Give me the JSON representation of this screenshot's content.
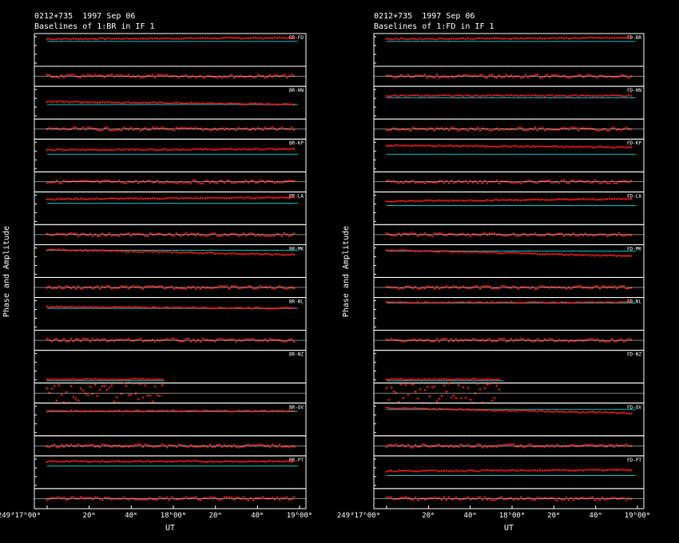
{
  "colors": {
    "background": "#000000",
    "frame": "#ffffff",
    "data": "#ff2020",
    "model": "#00c8c8",
    "text": "#ffffff"
  },
  "panels": [
    {
      "source_line": "0212+735  1997 Sep 06",
      "title_line": "Baselines of 1:BR in IF 1",
      "ylabel": "Phase and Amplitude",
      "xlabel": "UT",
      "x_tick_labels": [
        "249ᵈ17ʰ00ᵐ",
        "20ᵐ",
        "40ᵐ",
        "18ʰ00ᵐ",
        "20ᵐ",
        "40ᵐ",
        "19ʰ00ᵐ"
      ],
      "baselines": [
        {
          "label": "BR-FD",
          "amp_level": 0.88,
          "model_level": 0.8,
          "amp_trend": 0.04,
          "phase_amp": 0.04
        },
        {
          "label": "BR-HN",
          "amp_level": 0.55,
          "model_level": 0.45,
          "amp_trend": -0.1,
          "phase_amp": 0.04
        },
        {
          "label": "BR-KP",
          "amp_level": 0.7,
          "model_level": 0.55,
          "amp_trend": 0.03,
          "phase_amp": 0.04
        },
        {
          "label": "BR-LA",
          "amp_level": 0.82,
          "model_level": 0.68,
          "amp_trend": 0.06,
          "phase_amp": 0.04
        },
        {
          "label": "BR-MK",
          "amp_level": 0.9,
          "model_level": 0.88,
          "amp_trend": -0.18,
          "phase_amp": 0.04
        },
        {
          "label": "BR-NL",
          "amp_level": 0.75,
          "model_level": 0.7,
          "amp_trend": -0.05,
          "phase_amp": 0.04
        },
        {
          "label": "BR-NZ",
          "amp_level": 0.08,
          "model_level": 0.03,
          "amp_trend": 0.0,
          "phase_amp": 0.25,
          "end_fraction": 0.48
        },
        {
          "label": "BR-OV",
          "amp_level": 0.8,
          "model_level": 0.78,
          "amp_trend": 0.0,
          "phase_amp": 0.04
        },
        {
          "label": "BR-PT",
          "amp_level": 0.88,
          "model_level": 0.72,
          "amp_trend": 0.0,
          "phase_amp": 0.04
        }
      ]
    },
    {
      "source_line": "0212+735  1997 Sep 06",
      "title_line": "Baselines of 1:FD in IF 1",
      "ylabel": "Phase and Amplitude",
      "xlabel": "UT",
      "x_tick_labels": [
        "249ᵈ17ʰ00ᵐ",
        "20ᵐ",
        "40ᵐ",
        "18ʰ00ᵐ",
        "20ᵐ",
        "40ᵐ",
        "19ʰ00ᵐ"
      ],
      "baselines": [
        {
          "label": "FD-BR",
          "amp_level": 0.88,
          "model_level": 0.8,
          "amp_trend": 0.04,
          "phase_amp": 0.04
        },
        {
          "label": "FD-HN",
          "amp_level": 0.75,
          "model_level": 0.68,
          "amp_trend": 0.0,
          "phase_amp": 0.04
        },
        {
          "label": "FD-KP",
          "amp_level": 0.85,
          "model_level": 0.55,
          "amp_trend": -0.06,
          "phase_amp": 0.04
        },
        {
          "label": "FD-LA",
          "amp_level": 0.75,
          "model_level": 0.6,
          "amp_trend": 0.08,
          "phase_amp": 0.04
        },
        {
          "label": "FD-MK",
          "amp_level": 0.88,
          "model_level": 0.85,
          "amp_trend": -0.2,
          "phase_amp": 0.04
        },
        {
          "label": "FD-NL",
          "amp_level": 0.9,
          "model_level": 0.88,
          "amp_trend": 0.0,
          "phase_amp": 0.04
        },
        {
          "label": "FD-NZ",
          "amp_level": 0.08,
          "model_level": 0.03,
          "amp_trend": 0.0,
          "phase_amp": 0.25,
          "end_fraction": 0.48
        },
        {
          "label": "FD-OV",
          "amp_level": 0.9,
          "model_level": 0.85,
          "amp_trend": -0.18,
          "phase_amp": 0.04
        },
        {
          "label": "FD-PT",
          "amp_level": 0.55,
          "model_level": 0.4,
          "amp_trend": 0.04,
          "phase_amp": 0.04
        }
      ]
    }
  ],
  "chart_data": [
    {
      "type": "scatter",
      "title": "Baselines of 1:BR in IF 1",
      "subtitle": "0212+735  1997 Sep 06",
      "xlabel": "UT",
      "ylabel": "Phase and Amplitude",
      "x_range": [
        "249ᵈ17ʰ00ᵐ",
        "249ᵈ19ʰ00ᵐ"
      ],
      "series": [
        {
          "name": "BR-FD"
        },
        {
          "name": "BR-HN"
        },
        {
          "name": "BR-KP"
        },
        {
          "name": "BR-LA"
        },
        {
          "name": "BR-MK"
        },
        {
          "name": "BR-NL"
        },
        {
          "name": "BR-NZ"
        },
        {
          "name": "BR-OV"
        },
        {
          "name": "BR-PT"
        }
      ],
      "grid": false
    },
    {
      "type": "scatter",
      "title": "Baselines of 1:FD in IF 1",
      "subtitle": "0212+735  1997 Sep 06",
      "xlabel": "UT",
      "ylabel": "Phase and Amplitude",
      "x_range": [
        "249ᵈ17ʰ00ᵐ",
        "249ᵈ19ʰ00ᵐ"
      ],
      "series": [
        {
          "name": "FD-BR"
        },
        {
          "name": "FD-HN"
        },
        {
          "name": "FD-KP"
        },
        {
          "name": "FD-LA"
        },
        {
          "name": "FD-MK"
        },
        {
          "name": "FD-NL"
        },
        {
          "name": "FD-NZ"
        },
        {
          "name": "FD-OV"
        },
        {
          "name": "FD-PT"
        }
      ],
      "grid": false
    }
  ]
}
